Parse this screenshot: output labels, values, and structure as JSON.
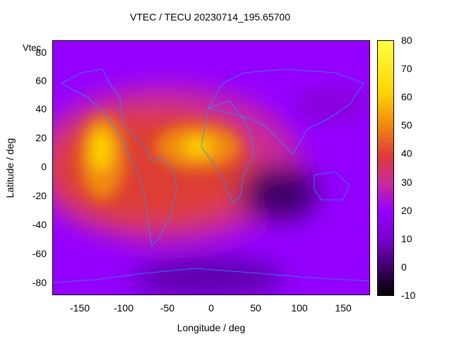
{
  "chart_data": {
    "type": "heatmap",
    "title": "VTEC / TECU 20230714_195.65700",
    "xlabel": "Longitude / deg",
    "ylabel": "Latitude / deg",
    "xlim": [
      -180,
      180
    ],
    "ylim": [
      -90,
      90
    ],
    "x_ticks": [
      "-150",
      "-100",
      "-50",
      "0",
      "50",
      "100",
      "150"
    ],
    "y_ticks": [
      "80",
      "60",
      "40",
      "20",
      "0",
      "-20",
      "-40",
      "-60",
      "-80"
    ],
    "colorbar": {
      "range": [
        -10,
        80
      ],
      "ticks": [
        "80",
        "70",
        "60",
        "50",
        "40",
        "30",
        "20",
        "10",
        "0",
        "-10"
      ]
    },
    "stray_label": "Vtec",
    "colormap": [
      "#000000",
      "#3d0066",
      "#7a00cc",
      "#9400ff",
      "#c82a9a",
      "#dd3c36",
      "#f08a10",
      "#ffd700",
      "#ffff40"
    ],
    "features": [
      {
        "name": "Pacific equatorial maximum",
        "lon": -130,
        "lat": 0,
        "vtec": 68
      },
      {
        "name": "Atlantic equatorial maximum",
        "lon": -20,
        "lat": 10,
        "vtec": 72
      },
      {
        "name": "Indian Ocean minimum",
        "lon": 80,
        "lat": -20,
        "vtec": -2
      },
      {
        "name": "Antarctic low",
        "lon": 10,
        "lat": -80,
        "vtec": 5
      }
    ]
  }
}
